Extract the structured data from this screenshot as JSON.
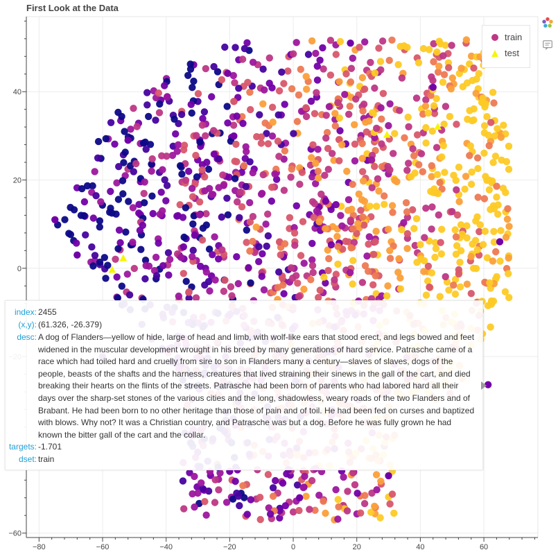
{
  "title": "First Look at the Data",
  "colors": {
    "test_marker": "#f5f50a",
    "palette": [
      "#0d0887",
      "#46039f",
      "#7201a8",
      "#9c179e",
      "#bd3786",
      "#d8576b",
      "#ed7953",
      "#fb9f3a",
      "#fdca26"
    ]
  },
  "legend": [
    {
      "label": "train",
      "marker": "circle",
      "color": "#bd3786"
    },
    {
      "label": "test",
      "marker": "triangle",
      "color": "#f5f50a"
    }
  ],
  "toolbar": {
    "icons": [
      "bokeh-logo-icon",
      "hover-tool-icon"
    ]
  },
  "chart_data": {
    "type": "scatter",
    "title": "First Look at the Data",
    "xlim": [
      -84,
      77
    ],
    "ylim": [
      -61,
      57
    ],
    "x_ticks": [
      -80,
      -60,
      -40,
      -20,
      0,
      20,
      40,
      60
    ],
    "y_ticks": [
      -60,
      -20,
      0,
      20,
      40
    ],
    "grid": true,
    "legend_position": "top-right",
    "colormap": "plasma",
    "series": [
      {
        "name": "train",
        "marker": "circle",
        "n_points": "approx 2000",
        "sample_points": [
          [
            61.326,
            -26.379
          ],
          [
            -68,
            3
          ],
          [
            -75,
            11
          ],
          [
            -52,
            29
          ],
          [
            -20,
            -46
          ],
          [
            2,
            -52
          ],
          [
            18,
            51
          ],
          [
            44,
            41
          ],
          [
            65,
            6
          ],
          [
            -8,
            -34
          ],
          [
            30,
            -47
          ],
          [
            -60,
            -20
          ]
        ]
      },
      {
        "name": "test",
        "marker": "triangle",
        "points": [
          [
            -53.5,
            2.2
          ],
          [
            -57,
            -0.4
          ],
          [
            29.5,
            30.2
          ],
          [
            45.5,
            32.0
          ]
        ]
      }
    ],
    "tooltip": {
      "labels": {
        "index": "index:",
        "xy": "(x,y):",
        "desc": "desc:",
        "targets": "targets:",
        "dset": "dset:"
      },
      "index": "2455",
      "xy": "(61.326, -26.379)",
      "desc_lines": [
        "A dog of Flanders—yellow of hide, large of head and limb, with wolf-like ears that stood erect, and legs bowed and feet",
        "widened in the muscular development wrought in his breed by many generations of hard service. Patrasche came of a",
        "race which had toiled hard and cruelly from sire to son in Flanders many a century—slaves of slaves, dogs of the",
        "people, beasts of the shafts and the harness, creatures that lived straining their sinews in the gall of the cart, and died",
        "breaking their hearts on the flints of the streets. Patrasche had been born of parents who had labored hard all their",
        "days over the sharp-set stones of the various cities and the long, shadowless, weary roads of the two Flanders and of",
        "Brabant. He had been born to no other heritage than those of pain and of toil. He had been fed on curses and baptized",
        "with blows. Why not? It was a Christian country, and Patrasche was but a dog. Before he was fully grown he had",
        "known the bitter gall of the cart and the collar."
      ],
      "targets": "-1.701",
      "dset": "train"
    }
  }
}
